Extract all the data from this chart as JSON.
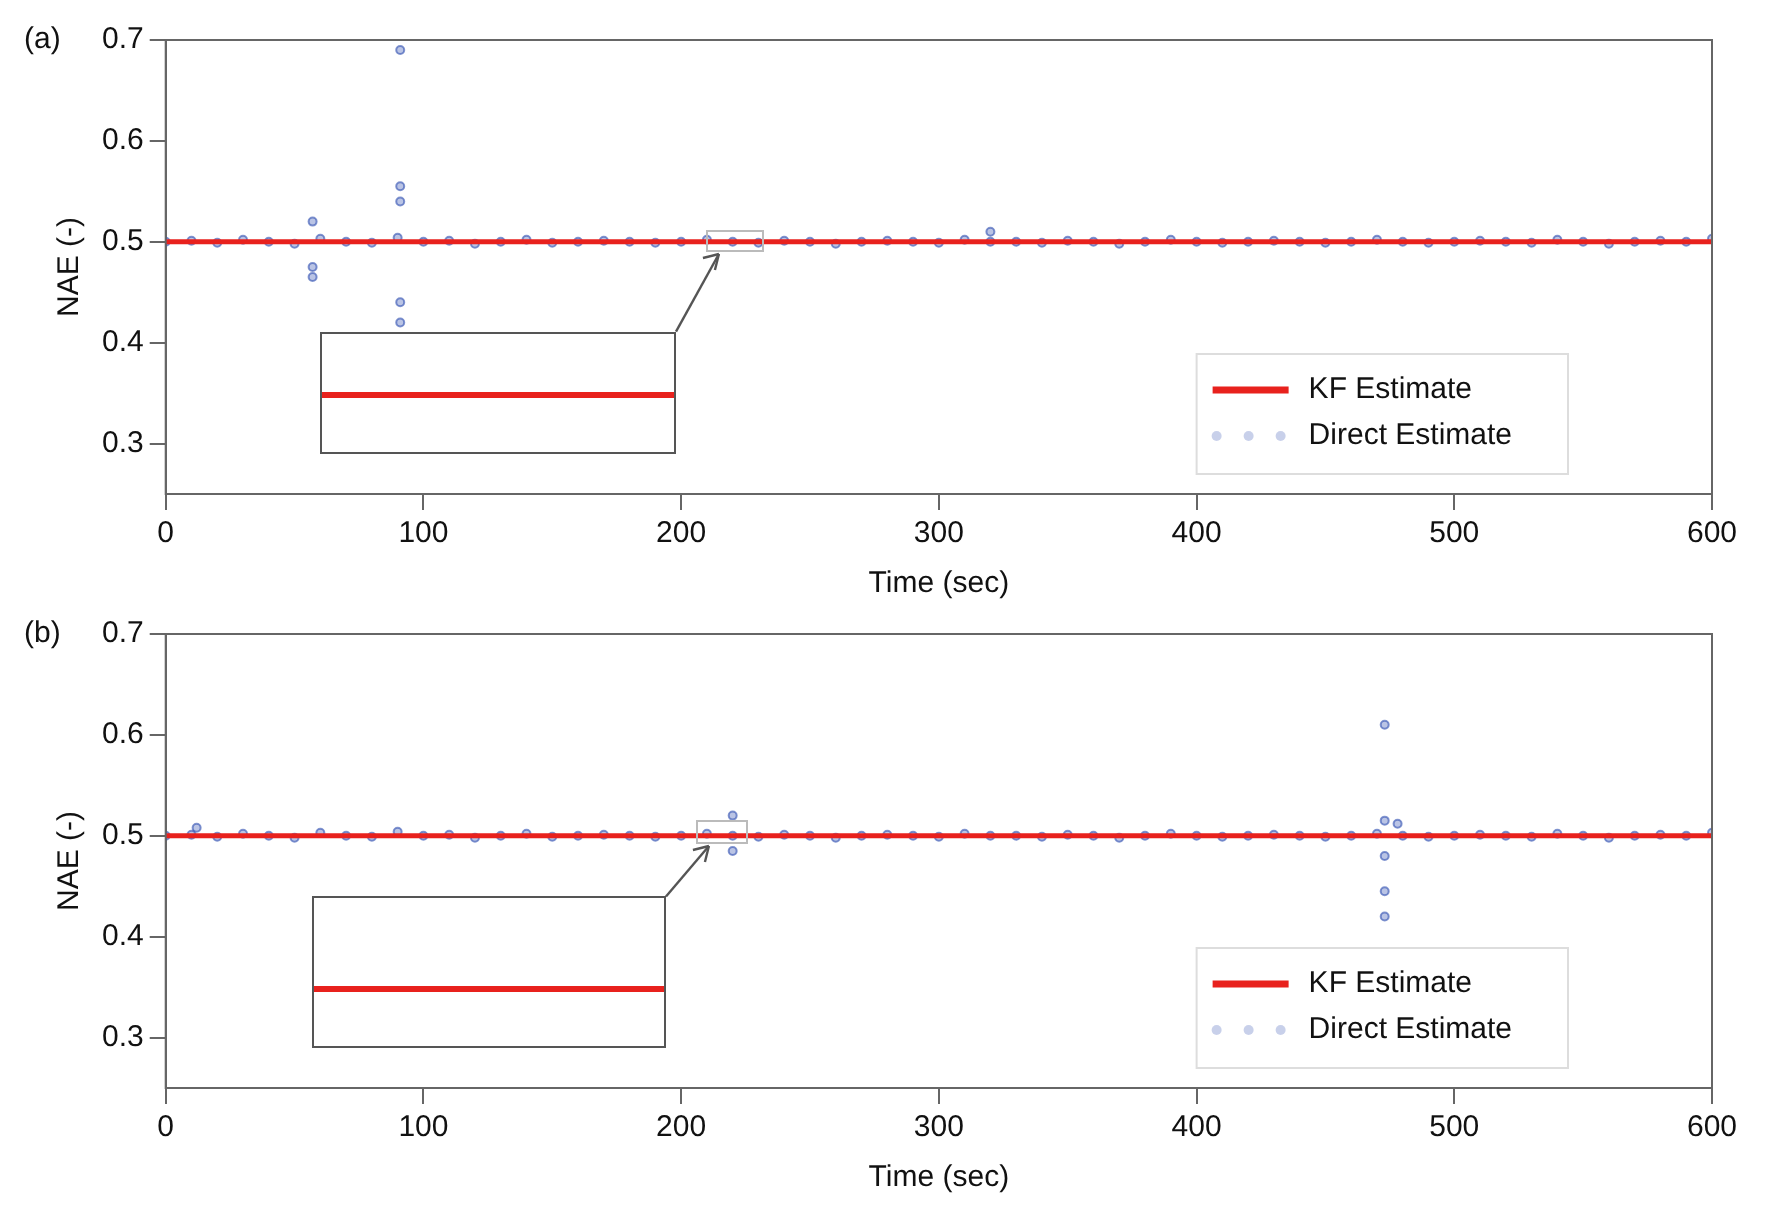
{
  "chart_data": [
    {
      "type": "scatter",
      "title": "(a)",
      "xlabel": "Time (sec)",
      "ylabel": "NAE (-)",
      "xlim": [
        0,
        600
      ],
      "xticks": [
        0,
        100,
        200,
        300,
        400,
        500,
        600
      ],
      "ylim": [
        0.25,
        0.7
      ],
      "yticks": [
        0.3,
        0.4,
        0.5,
        0.6,
        0.7
      ],
      "grid": false,
      "legend": "bottom right",
      "series": [
        {
          "name": "KF Estimate",
          "type": "line",
          "marker": "none",
          "color": "#e8211d",
          "x": [
            0,
            600
          ],
          "values": [
            0.5,
            0.5
          ]
        },
        {
          "name": "Direct Estimate",
          "marker": "circle",
          "color": "#2f4fb0",
          "x": [
            0,
            10,
            20,
            30,
            40,
            50,
            60,
            70,
            80,
            90,
            100,
            110,
            120,
            130,
            140,
            150,
            160,
            170,
            180,
            190,
            200,
            210,
            220,
            230,
            240,
            250,
            260,
            270,
            280,
            290,
            300,
            310,
            320,
            330,
            340,
            350,
            360,
            370,
            380,
            390,
            400,
            410,
            420,
            430,
            440,
            450,
            460,
            470,
            480,
            490,
            500,
            510,
            520,
            530,
            540,
            550,
            560,
            570,
            580,
            590,
            600,
            57,
            57,
            57,
            91,
            91,
            91,
            91,
            91,
            320
          ],
          "values": [
            0.5,
            0.501,
            0.499,
            0.502,
            0.5,
            0.498,
            0.503,
            0.5,
            0.499,
            0.504,
            0.5,
            0.501,
            0.498,
            0.5,
            0.502,
            0.499,
            0.5,
            0.501,
            0.5,
            0.499,
            0.5,
            0.502,
            0.5,
            0.499,
            0.501,
            0.5,
            0.498,
            0.5,
            0.501,
            0.5,
            0.499,
            0.502,
            0.5,
            0.5,
            0.499,
            0.501,
            0.5,
            0.498,
            0.5,
            0.502,
            0.5,
            0.499,
            0.5,
            0.501,
            0.5,
            0.499,
            0.5,
            0.502,
            0.5,
            0.499,
            0.5,
            0.501,
            0.5,
            0.499,
            0.502,
            0.5,
            0.498,
            0.5,
            0.501,
            0.5,
            0.503,
            0.52,
            0.475,
            0.465,
            0.69,
            0.555,
            0.54,
            0.44,
            0.42,
            0.51
          ]
        }
      ]
    },
    {
      "type": "scatter",
      "title": "(b)",
      "xlabel": "Time (sec)",
      "ylabel": "NAE (-)",
      "xlim": [
        0,
        600
      ],
      "xticks": [
        0,
        100,
        200,
        300,
        400,
        500,
        600
      ],
      "ylim": [
        0.25,
        0.7
      ],
      "yticks": [
        0.3,
        0.4,
        0.5,
        0.6,
        0.7
      ],
      "grid": false,
      "legend": "bottom right",
      "series": [
        {
          "name": "KF Estimate",
          "type": "line",
          "marker": "none",
          "color": "#e8211d",
          "x": [
            0,
            600
          ],
          "values": [
            0.5,
            0.5
          ]
        },
        {
          "name": "Direct Estimate",
          "marker": "circle",
          "color": "#2f4fb0",
          "x": [
            0,
            10,
            20,
            30,
            40,
            50,
            60,
            70,
            80,
            90,
            100,
            110,
            120,
            130,
            140,
            150,
            160,
            170,
            180,
            190,
            200,
            210,
            220,
            230,
            240,
            250,
            260,
            270,
            280,
            290,
            300,
            310,
            320,
            330,
            340,
            350,
            360,
            370,
            380,
            390,
            400,
            410,
            420,
            430,
            440,
            450,
            460,
            470,
            480,
            490,
            500,
            510,
            520,
            530,
            540,
            550,
            560,
            570,
            580,
            590,
            600,
            12,
            220,
            220,
            473,
            473,
            473,
            473,
            473,
            478
          ],
          "values": [
            0.5,
            0.501,
            0.499,
            0.502,
            0.5,
            0.498,
            0.503,
            0.5,
            0.499,
            0.504,
            0.5,
            0.501,
            0.498,
            0.5,
            0.502,
            0.499,
            0.5,
            0.501,
            0.5,
            0.499,
            0.5,
            0.502,
            0.5,
            0.499,
            0.501,
            0.5,
            0.498,
            0.5,
            0.501,
            0.5,
            0.499,
            0.502,
            0.5,
            0.5,
            0.499,
            0.501,
            0.5,
            0.498,
            0.5,
            0.502,
            0.5,
            0.499,
            0.5,
            0.501,
            0.5,
            0.499,
            0.5,
            0.502,
            0.5,
            0.499,
            0.5,
            0.501,
            0.5,
            0.499,
            0.502,
            0.5,
            0.498,
            0.5,
            0.501,
            0.5,
            0.503,
            0.508,
            0.52,
            0.485,
            0.61,
            0.515,
            0.48,
            0.445,
            0.42,
            0.512
          ]
        }
      ]
    }
  ]
}
